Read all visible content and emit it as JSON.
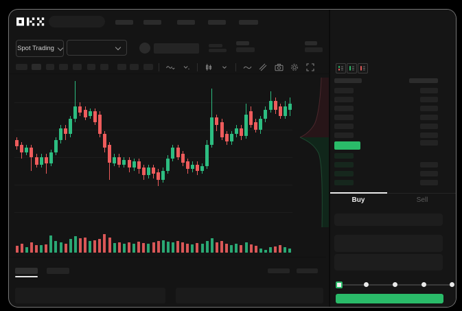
{
  "app": {
    "logo_text": "OKX"
  },
  "colors": {
    "window_bg": "#141414",
    "green": "#2abb69",
    "candle_green": "#2dbd81",
    "candle_red": "#ee5c5c",
    "vol_green": "#2aa874",
    "vol_red": "#d95757",
    "bid_row_green": "#16271d",
    "depth_ask_fill": "#271518",
    "depth_bid_fill": "#10261a"
  },
  "market_bar": {
    "market_type": "Spot Trading",
    "pair_selector_value": "",
    "stat_placeholders": 5
  },
  "toolbar": {
    "timeframe_placeholders": 10,
    "icons": [
      "indicators-icon",
      "compare-dropdown-icon",
      "candle-style-icon",
      "style-dropdown-icon",
      "line-tool-icon",
      "draw-tool-icon",
      "screenshot-icon",
      "chart-settings-icon",
      "fullscreen-icon"
    ]
  },
  "order_book": {
    "view_icons": [
      "book-combined-icon",
      "book-bids-icon",
      "book-asks-icon"
    ],
    "ask_rows": 6,
    "bid_rows": 4,
    "bid_right_rows": 3
  },
  "trade_panel": {
    "buy_tab": "Buy",
    "sell_tab": "Sell",
    "active_tab": "Buy",
    "input_fields": 3,
    "slider_stops": 5,
    "slider_value_index": 0
  },
  "bottom_bar": {
    "tab_placeholders": 2,
    "right_placeholders": 2,
    "panel_placeholders": 2
  },
  "chart_data": {
    "type": "candlestick-with-volume",
    "title": "",
    "xlabel": "",
    "ylabel": "",
    "note": "Skeleton/loading trading chart; no axis tick labels visible. Prices normalized 0-100.",
    "price_scale": [
      0,
      100
    ],
    "grid": "horizontal-faint",
    "columns": [
      "open",
      "close",
      "high",
      "low",
      "volume"
    ],
    "candles": [
      [
        58,
        54,
        60,
        52,
        35
      ],
      [
        55,
        50,
        57,
        46,
        45
      ],
      [
        50,
        53,
        55,
        48,
        30
      ],
      [
        53,
        47,
        55,
        38,
        55
      ],
      [
        47,
        42,
        49,
        40,
        40
      ],
      [
        42,
        47,
        49,
        40,
        38
      ],
      [
        47,
        43,
        49,
        36,
        42
      ],
      [
        43,
        50,
        52,
        41,
        88
      ],
      [
        50,
        58,
        60,
        48,
        60
      ],
      [
        58,
        66,
        68,
        56,
        55
      ],
      [
        66,
        62,
        68,
        58,
        45
      ],
      [
        62,
        72,
        74,
        60,
        70
      ],
      [
        72,
        80,
        97,
        70,
        85
      ],
      [
        80,
        76,
        83,
        74,
        75
      ],
      [
        78,
        73,
        80,
        71,
        80
      ],
      [
        74,
        77,
        79,
        72,
        60
      ],
      [
        77,
        70,
        79,
        68,
        65
      ],
      [
        75,
        62,
        77,
        60,
        72
      ],
      [
        62,
        53,
        64,
        50,
        95
      ],
      [
        55,
        43,
        57,
        32,
        78
      ],
      [
        43,
        47,
        49,
        41,
        50
      ],
      [
        47,
        42,
        49,
        40,
        55
      ],
      [
        42,
        45,
        47,
        40,
        45
      ],
      [
        45,
        40,
        47,
        37,
        52
      ],
      [
        40,
        44,
        46,
        38,
        48
      ],
      [
        44,
        39,
        46,
        36,
        58
      ],
      [
        40,
        35,
        42,
        32,
        50
      ],
      [
        35,
        40,
        42,
        33,
        46
      ],
      [
        40,
        36,
        42,
        33,
        55
      ],
      [
        37,
        32,
        39,
        28,
        60
      ],
      [
        32,
        38,
        40,
        30,
        65
      ],
      [
        38,
        46,
        48,
        36,
        58
      ],
      [
        46,
        53,
        55,
        44,
        52
      ],
      [
        53,
        47,
        55,
        45,
        60
      ],
      [
        49,
        43,
        51,
        41,
        55
      ],
      [
        44,
        39,
        46,
        36,
        48
      ],
      [
        39,
        42,
        44,
        37,
        42
      ],
      [
        42,
        38,
        44,
        35,
        50
      ],
      [
        38,
        41,
        43,
        36,
        45
      ],
      [
        41,
        55,
        58,
        39,
        62
      ],
      [
        55,
        73,
        92,
        53,
        75
      ],
      [
        73,
        68,
        75,
        64,
        55
      ],
      [
        70,
        60,
        72,
        58,
        60
      ],
      [
        62,
        57,
        64,
        55,
        48
      ],
      [
        57,
        62,
        64,
        55,
        40
      ],
      [
        62,
        66,
        68,
        60,
        45
      ],
      [
        66,
        61,
        68,
        58,
        38
      ],
      [
        61,
        75,
        82,
        59,
        55
      ],
      [
        77,
        68,
        80,
        66,
        42
      ],
      [
        70,
        65,
        72,
        63,
        35
      ],
      [
        65,
        72,
        74,
        62,
        20
      ],
      [
        72,
        78,
        80,
        70,
        15
      ],
      [
        78,
        84,
        90,
        76,
        28
      ],
      [
        84,
        78,
        86,
        75,
        32
      ],
      [
        80,
        74,
        82,
        72,
        40
      ],
      [
        74,
        80,
        84,
        72,
        30
      ],
      [
        78,
        82,
        86,
        74,
        22
      ]
    ],
    "depth_overlay": {
      "type": "vertical-depth",
      "asks_fraction": 0.4,
      "bids_fraction": 0.6
    }
  }
}
